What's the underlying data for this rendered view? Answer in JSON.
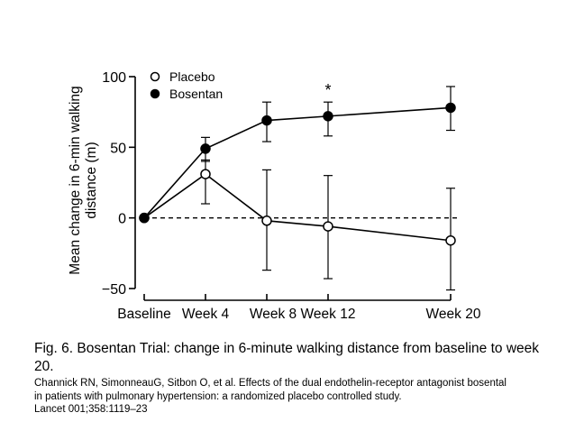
{
  "chart_data": {
    "type": "line",
    "title": "",
    "xlabel": "",
    "ylabel": "Mean change in 6-min walking distance (m)",
    "ylabel_lines": [
      "Mean change in 6-min walking",
      "distance (m)"
    ],
    "categories": [
      "Baseline",
      "Week 4",
      "Week 8",
      "Week 12",
      "Week 20"
    ],
    "x_weeks": [
      0,
      4,
      8,
      12,
      20
    ],
    "ylim": [
      -50,
      100
    ],
    "yticks": [
      100,
      50,
      0,
      -50
    ],
    "ytick_labels": [
      "100",
      "50",
      "0",
      "−50"
    ],
    "reference_line": 0,
    "legend_position": "top-left",
    "series": [
      {
        "name": "Placebo",
        "marker": "open-circle",
        "values": [
          0,
          31,
          -2,
          -6,
          -16
        ],
        "error_upper": [
          0,
          41,
          34,
          30,
          21
        ],
        "error_lower": [
          0,
          10,
          -37,
          -43,
          -51
        ]
      },
      {
        "name": "Bosentan",
        "marker": "filled-circle",
        "values": [
          0,
          49,
          69,
          72,
          78
        ],
        "error_upper": [
          0,
          57,
          82,
          82,
          93
        ],
        "error_lower": [
          0,
          40,
          54,
          58,
          62
        ]
      }
    ],
    "annotations": [
      {
        "text": "*",
        "category": "Week 12"
      }
    ]
  },
  "caption": {
    "title": "Fig. 6. Bosentan Trial: change in 6-minute walking distance from baseline to week 20.",
    "reference_lines": [
      "Channick RN, SimonneauG, Sitbon O, et al. Effects of the dual endothelin-receptor antagonist bosental",
      "in patients with pulmonary hypertension: a randomized placebo controlled study.",
      "Lancet 001;358:1119–23"
    ]
  }
}
